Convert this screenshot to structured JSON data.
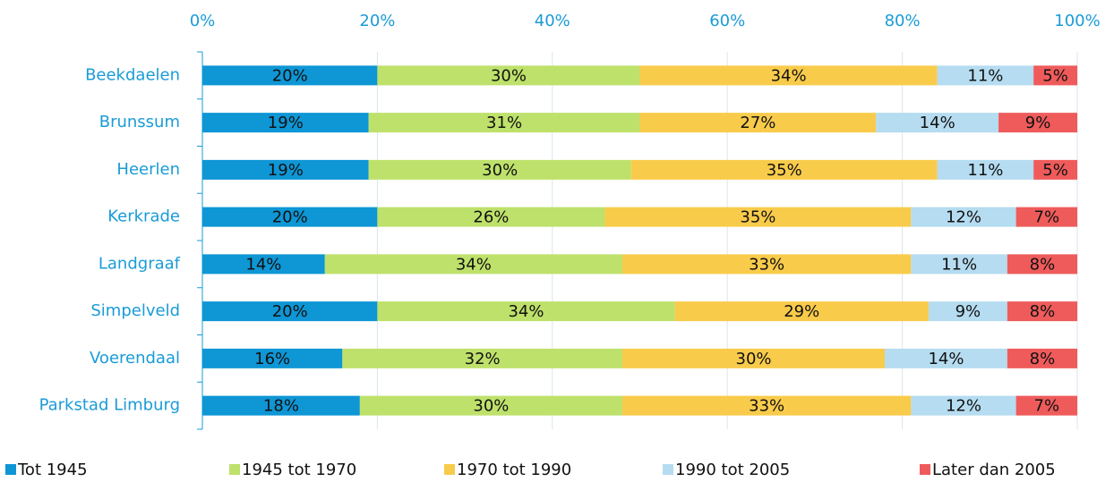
{
  "chart_data": {
    "type": "bar",
    "orientation": "horizontal",
    "stacked": true,
    "categories": [
      "Beekdaelen",
      "Brunssum",
      "Heerlen",
      "Kerkrade",
      "Landgraaf",
      "Simpelveld",
      "Voerendaal",
      "Parkstad Limburg"
    ],
    "series": [
      {
        "name": "Tot 1945",
        "color": "#0e96d5",
        "values": [
          20,
          19,
          19,
          20,
          14,
          20,
          16,
          18
        ],
        "value_labels": [
          "20%",
          "19%",
          "19%",
          "20%",
          "14%",
          "20%",
          "16%",
          "18%"
        ]
      },
      {
        "name": "1945 tot 1970",
        "color": "#bee16b",
        "values": [
          30,
          31,
          30,
          26,
          34,
          34,
          32,
          30
        ],
        "value_labels": [
          "30%",
          "31%",
          "30%",
          "26%",
          "34%",
          "34%",
          "32%",
          "30%"
        ]
      },
      {
        "name": "1970 tot 1990",
        "color": "#f9cb4b",
        "values": [
          34,
          27,
          35,
          35,
          33,
          29,
          30,
          33
        ],
        "value_labels": [
          "34%",
          "27%",
          "35%",
          "35%",
          "33%",
          "29%",
          "30%",
          "33%"
        ]
      },
      {
        "name": "1990 tot 2005",
        "color": "#b5dcf0",
        "values": [
          11,
          14,
          11,
          12,
          11,
          9,
          14,
          12
        ],
        "value_labels": [
          "11%",
          "14%",
          "11%",
          "12%",
          "11%",
          "9%",
          "14%",
          "12%"
        ]
      },
      {
        "name": "Later dan 2005",
        "color": "#ef5b5b",
        "values": [
          5,
          9,
          5,
          7,
          8,
          8,
          8,
          7
        ],
        "value_labels": [
          "5%",
          "9%",
          "5%",
          "7%",
          "8%",
          "8%",
          "8%",
          "7%"
        ]
      }
    ],
    "xlim": [
      0,
      100
    ],
    "xticks": [
      {
        "value": 0,
        "label": "0%"
      },
      {
        "value": 20,
        "label": "20%"
      },
      {
        "value": 40,
        "label": "40%"
      },
      {
        "value": 60,
        "label": "60%"
      },
      {
        "value": 80,
        "label": "80%"
      },
      {
        "value": 100,
        "label": "100%"
      }
    ],
    "grid": true,
    "legend": "bottom"
  }
}
